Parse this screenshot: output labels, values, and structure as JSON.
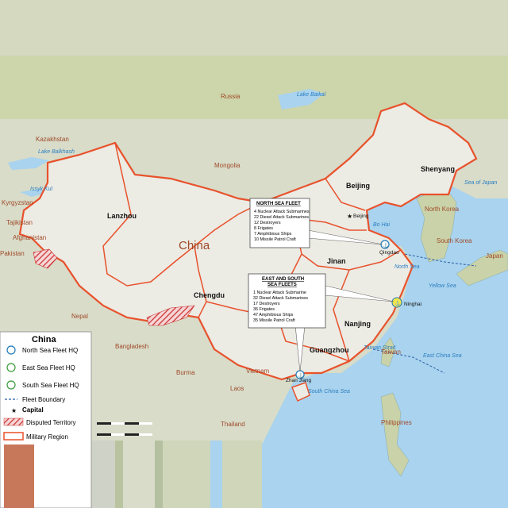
{
  "map": {
    "countries": [
      {
        "name": "Russia"
      },
      {
        "name": "Kazakhstan"
      },
      {
        "name": "Mongolia"
      },
      {
        "name": "Kyrgyzstan"
      },
      {
        "name": "Tajikistan"
      },
      {
        "name": "Afghanistan"
      },
      {
        "name": "Pakistan"
      },
      {
        "name": "Nepal"
      },
      {
        "name": "Bangladesh"
      },
      {
        "name": "Burma"
      },
      {
        "name": "Laos"
      },
      {
        "name": "Vietnam"
      },
      {
        "name": "Thailand"
      },
      {
        "name": "North Korea"
      },
      {
        "name": "South Korea"
      },
      {
        "name": "Japan"
      },
      {
        "name": "Taiwan"
      },
      {
        "name": "Philippines"
      }
    ],
    "water": [
      {
        "name": "Lake Baikal"
      },
      {
        "name": "Lake Balkhash"
      },
      {
        "name": "Issyk Kul"
      },
      {
        "name": "Bo Hai"
      },
      {
        "name": "Yellow Sea"
      },
      {
        "name": "North Sea"
      },
      {
        "name": "East China Sea"
      },
      {
        "name": "South China Sea"
      },
      {
        "name": "Taiwan Strait"
      },
      {
        "name": "Sea of Japan"
      }
    ],
    "china_label": "China",
    "regions": [
      "Shenyang",
      "Beijing",
      "Lanzhou",
      "Jinan",
      "Chengdu",
      "Nanjing",
      "Guangzhou"
    ],
    "cities": [
      "Beijing",
      "Qingdao",
      "Ninghai",
      "Zhan Jiang"
    ],
    "north_fleet": {
      "title": "NORTH SEA FLEET",
      "lines": [
        "4 Nuclear Attack Submarines",
        "22 Diesel Attack Submarines",
        "12 Destroyers",
        "8 Frigates",
        "7 Amphibious Ships",
        "10 Missile Patrol Craft"
      ]
    },
    "east_south_fleet": {
      "title": [
        "EAST AND SOUTH",
        "SEA FLEETS"
      ],
      "lines": [
        "1 Nuclear Attack Submarine",
        "32 Diesel Attack Submarines",
        "17 Destroyers",
        "36 Frigates",
        "47 Amphibious Ships",
        "35 Missile Patrol Craft"
      ]
    },
    "colors": {
      "land": "#d9d9cf",
      "china": "#ecebe4",
      "neighbor": "#c9d2a8",
      "water": "#a9d3ee",
      "boundary": "#e8522c",
      "disputed": "#cc3333",
      "fleet_hq": "#1f78b4"
    }
  },
  "legend": {
    "title": "China",
    "items": [
      {
        "label": "North Sea Fleet HQ"
      },
      {
        "label": "East Sea Fleet HQ"
      },
      {
        "label": "South Sea Fleet HQ"
      },
      {
        "label": "Fleet Boundary"
      },
      {
        "label": "Capital"
      },
      {
        "label": "Disputed Territory"
      },
      {
        "label": "Military Region"
      }
    ]
  }
}
